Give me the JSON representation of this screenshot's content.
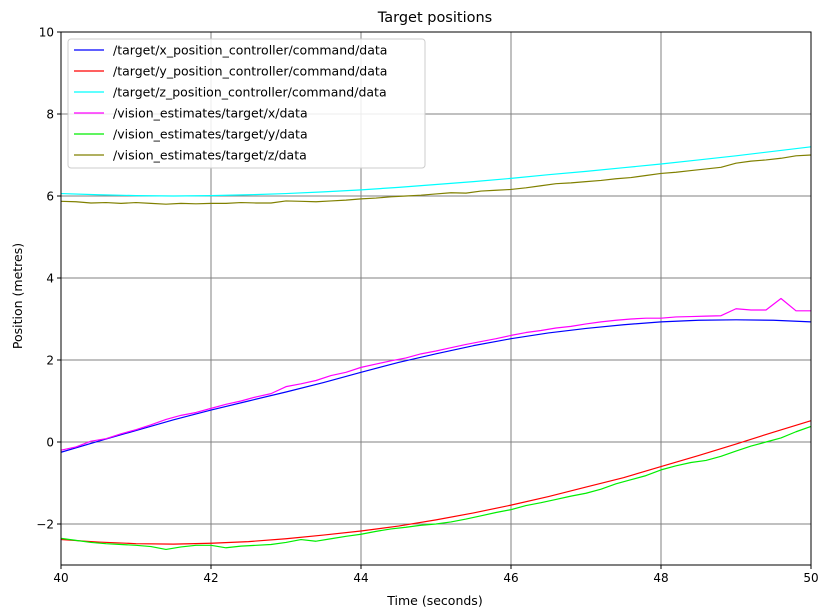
{
  "chart_data": {
    "type": "line",
    "title": "Target positions",
    "xlabel": "Time (seconds)",
    "ylabel": "Position (metres)",
    "xlim": [
      40,
      50
    ],
    "ylim": [
      -3,
      10
    ],
    "xticks": [
      40,
      42,
      44,
      46,
      48,
      50
    ],
    "yticks": [
      -2,
      0,
      2,
      4,
      6,
      8,
      10
    ],
    "ytick_labels": [
      "−2",
      "0",
      "2",
      "4",
      "6",
      "8",
      "10"
    ],
    "xtick_labels": [
      "40",
      "42",
      "44",
      "46",
      "48",
      "50"
    ],
    "grid": true,
    "legend_position": "top-left",
    "series": [
      {
        "name": "/target/x_position_controller/command/data",
        "color": "#0000ff",
        "x": [
          40,
          40.5,
          41,
          41.5,
          42,
          42.5,
          43,
          43.5,
          44,
          44.5,
          45,
          45.5,
          46,
          46.5,
          47,
          47.5,
          48,
          48.5,
          49,
          49.5,
          50
        ],
        "y": [
          -0.25,
          0.02,
          0.28,
          0.54,
          0.78,
          1.0,
          1.22,
          1.45,
          1.7,
          1.94,
          2.15,
          2.35,
          2.52,
          2.66,
          2.77,
          2.86,
          2.93,
          2.97,
          2.98,
          2.97,
          2.93
        ]
      },
      {
        "name": "/target/y_position_controller/command/data",
        "color": "#ff0000",
        "x": [
          40,
          40.5,
          41,
          41.5,
          42,
          42.5,
          43,
          43.5,
          44,
          44.5,
          45,
          45.5,
          46,
          46.5,
          47,
          47.5,
          48,
          48.5,
          49,
          49.5,
          50
        ],
        "y": [
          -2.38,
          -2.44,
          -2.48,
          -2.49,
          -2.47,
          -2.43,
          -2.36,
          -2.27,
          -2.17,
          -2.05,
          -1.9,
          -1.73,
          -1.54,
          -1.33,
          -1.1,
          -0.87,
          -0.6,
          -0.33,
          -0.05,
          0.24,
          0.52
        ]
      },
      {
        "name": "/target/z_position_controller/command/data",
        "color": "#00ffff",
        "x": [
          40,
          40.5,
          41,
          41.5,
          42,
          42.5,
          43,
          43.5,
          44,
          44.5,
          45,
          45.5,
          46,
          46.5,
          47,
          47.5,
          48,
          48.5,
          49,
          49.5,
          50
        ],
        "y": [
          6.06,
          6.03,
          6.01,
          6.0,
          6.01,
          6.03,
          6.06,
          6.1,
          6.15,
          6.21,
          6.28,
          6.35,
          6.43,
          6.52,
          6.6,
          6.69,
          6.78,
          6.88,
          6.98,
          7.09,
          7.2
        ]
      },
      {
        "name": "/vision_estimates/target/x/data",
        "color": "#ff00ff",
        "x": [
          40,
          40.2,
          40.4,
          40.6,
          40.8,
          41,
          41.2,
          41.4,
          41.6,
          41.8,
          42,
          42.2,
          42.4,
          42.6,
          42.8,
          43,
          43.2,
          43.4,
          43.6,
          43.8,
          44,
          44.2,
          44.4,
          44.6,
          44.8,
          45,
          45.2,
          45.4,
          45.6,
          45.8,
          46,
          46.2,
          46.4,
          46.6,
          46.8,
          47,
          47.2,
          47.4,
          47.6,
          47.8,
          48,
          48.2,
          48.4,
          48.6,
          48.8,
          49,
          49.2,
          49.4,
          49.6,
          49.8,
          50
        ],
        "y": [
          -0.2,
          -0.12,
          0.02,
          0.08,
          0.2,
          0.3,
          0.42,
          0.55,
          0.65,
          0.72,
          0.82,
          0.92,
          1.0,
          1.1,
          1.18,
          1.35,
          1.42,
          1.5,
          1.62,
          1.7,
          1.82,
          1.9,
          1.98,
          2.05,
          2.15,
          2.22,
          2.3,
          2.38,
          2.45,
          2.52,
          2.6,
          2.67,
          2.72,
          2.78,
          2.82,
          2.88,
          2.93,
          2.97,
          3.0,
          3.02,
          3.02,
          3.05,
          3.06,
          3.07,
          3.08,
          3.25,
          3.22,
          3.22,
          3.5,
          3.2,
          3.2
        ]
      },
      {
        "name": "/vision_estimates/target/y/data",
        "color": "#00ee00",
        "x": [
          40,
          40.2,
          40.4,
          40.6,
          40.8,
          41,
          41.2,
          41.4,
          41.6,
          41.8,
          42,
          42.2,
          42.4,
          42.6,
          42.8,
          43,
          43.2,
          43.4,
          43.6,
          43.8,
          44,
          44.2,
          44.4,
          44.6,
          44.8,
          45,
          45.2,
          45.4,
          45.6,
          45.8,
          46,
          46.2,
          46.4,
          46.6,
          46.8,
          47,
          47.2,
          47.4,
          47.6,
          47.8,
          48,
          48.2,
          48.4,
          48.6,
          48.8,
          49,
          49.2,
          49.4,
          49.6,
          49.8,
          50
        ],
        "y": [
          -2.35,
          -2.4,
          -2.45,
          -2.48,
          -2.5,
          -2.52,
          -2.55,
          -2.62,
          -2.56,
          -2.52,
          -2.52,
          -2.58,
          -2.54,
          -2.52,
          -2.5,
          -2.45,
          -2.38,
          -2.42,
          -2.36,
          -2.3,
          -2.25,
          -2.18,
          -2.12,
          -2.08,
          -2.03,
          -2.0,
          -1.95,
          -1.88,
          -1.8,
          -1.72,
          -1.65,
          -1.55,
          -1.48,
          -1.4,
          -1.32,
          -1.25,
          -1.15,
          -1.02,
          -0.92,
          -0.82,
          -0.68,
          -0.58,
          -0.5,
          -0.45,
          -0.35,
          -0.22,
          -0.1,
          0.0,
          0.1,
          0.25,
          0.38
        ]
      },
      {
        "name": "/vision_estimates/target/z/data",
        "color": "#808000",
        "x": [
          40,
          40.2,
          40.4,
          40.6,
          40.8,
          41,
          41.2,
          41.4,
          41.6,
          41.8,
          42,
          42.2,
          42.4,
          42.6,
          42.8,
          43,
          43.2,
          43.4,
          43.6,
          43.8,
          44,
          44.2,
          44.4,
          44.6,
          44.8,
          45,
          45.2,
          45.4,
          45.6,
          45.8,
          46,
          46.2,
          46.4,
          46.6,
          46.8,
          47,
          47.2,
          47.4,
          47.6,
          47.8,
          48,
          48.2,
          48.4,
          48.6,
          48.8,
          49,
          49.2,
          49.4,
          49.6,
          49.8,
          50
        ],
        "y": [
          5.87,
          5.86,
          5.83,
          5.84,
          5.82,
          5.84,
          5.82,
          5.8,
          5.82,
          5.81,
          5.82,
          5.82,
          5.84,
          5.83,
          5.83,
          5.88,
          5.87,
          5.86,
          5.88,
          5.9,
          5.93,
          5.95,
          5.98,
          6.0,
          6.02,
          6.05,
          6.08,
          6.07,
          6.12,
          6.14,
          6.16,
          6.2,
          6.25,
          6.3,
          6.32,
          6.35,
          6.38,
          6.42,
          6.45,
          6.5,
          6.55,
          6.58,
          6.62,
          6.66,
          6.7,
          6.8,
          6.85,
          6.88,
          6.92,
          6.98,
          7.0
        ]
      }
    ]
  }
}
